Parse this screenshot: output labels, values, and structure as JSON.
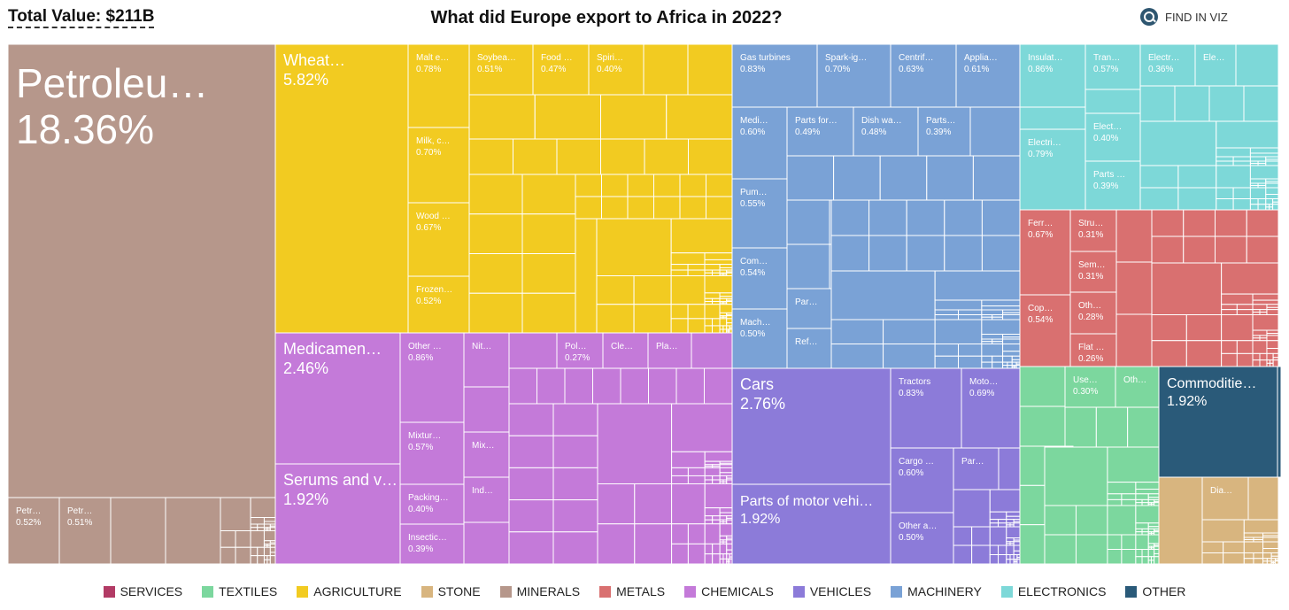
{
  "header": {
    "total": "Total Value: $211B",
    "title": "What did Europe export to Africa in 2022?",
    "find": "FIND IN VIZ"
  },
  "colors": {
    "SERVICES": "#b23b65",
    "TEXTILES": "#7cd79e",
    "AGRICULTURE": "#f2cb21",
    "STONE": "#d8b57f",
    "MINERALS": "#b6978b",
    "METALS": "#d97070",
    "CHEMICALS": "#c47ad9",
    "VEHICLES": "#8c7bd9",
    "MACHINERY": "#7aa2d6",
    "ELECTRONICS": "#7dd8d8",
    "OTHER": "#2a5a79"
  },
  "legend": [
    "SERVICES",
    "TEXTILES",
    "AGRICULTURE",
    "STONE",
    "MINERALS",
    "METALS",
    "CHEMICALS",
    "VEHICLES",
    "MACHINERY",
    "ELECTRONICS",
    "OTHER"
  ],
  "chart_data": {
    "type": "treemap",
    "title": "What did Europe export to Africa in 2022?",
    "total": "$211B",
    "items": [
      {
        "label": "Petroleu…",
        "value": "18.36%",
        "sector": "MINERALS"
      },
      {
        "label": "Petr…",
        "value": "0.52%",
        "sector": "MINERALS"
      },
      {
        "label": "Petr…",
        "value": "0.51%",
        "sector": "MINERALS"
      },
      {
        "label": "Wheat…",
        "value": "5.82%",
        "sector": "AGRICULTURE"
      },
      {
        "label": "Malt e…",
        "value": "0.78%",
        "sector": "AGRICULTURE"
      },
      {
        "label": "Soybea…",
        "value": "0.51%",
        "sector": "AGRICULTURE"
      },
      {
        "label": "Food …",
        "value": "0.47%",
        "sector": "AGRICULTURE"
      },
      {
        "label": "Spiri…",
        "value": "0.40%",
        "sector": "AGRICULTURE"
      },
      {
        "label": "Milk, c…",
        "value": "0.70%",
        "sector": "AGRICULTURE"
      },
      {
        "label": "Wood …",
        "value": "0.67%",
        "sector": "AGRICULTURE"
      },
      {
        "label": "Frozen…",
        "value": "0.52%",
        "sector": "AGRICULTURE"
      },
      {
        "label": "Medicamen…",
        "value": "2.46%",
        "sector": "CHEMICALS"
      },
      {
        "label": "Serums and v…",
        "value": "1.92%",
        "sector": "CHEMICALS"
      },
      {
        "label": "Other …",
        "value": "0.86%",
        "sector": "CHEMICALS"
      },
      {
        "label": "Mixtur…",
        "value": "0.57%",
        "sector": "CHEMICALS"
      },
      {
        "label": "Packing…",
        "value": "0.40%",
        "sector": "CHEMICALS"
      },
      {
        "label": "Insectic…",
        "value": "0.39%",
        "sector": "CHEMICALS"
      },
      {
        "label": "Nit…",
        "value": "",
        "sector": "CHEMICALS"
      },
      {
        "label": "Mix…",
        "value": "",
        "sector": "CHEMICALS"
      },
      {
        "label": "Ind…",
        "value": "",
        "sector": "CHEMICALS"
      },
      {
        "label": "Pol…",
        "value": "0.27%",
        "sector": "CHEMICALS"
      },
      {
        "label": "Cle…",
        "value": "",
        "sector": "CHEMICALS"
      },
      {
        "label": "Pla…",
        "value": "",
        "sector": "CHEMICALS"
      },
      {
        "label": "Gas turbines",
        "value": "0.83%",
        "sector": "MACHINERY"
      },
      {
        "label": "Spark-ig…",
        "value": "0.70%",
        "sector": "MACHINERY"
      },
      {
        "label": "Centrif…",
        "value": "0.63%",
        "sector": "MACHINERY"
      },
      {
        "label": "Applia…",
        "value": "0.61%",
        "sector": "MACHINERY"
      },
      {
        "label": "Medi…",
        "value": "0.60%",
        "sector": "MACHINERY"
      },
      {
        "label": "Parts for…",
        "value": "0.49%",
        "sector": "MACHINERY"
      },
      {
        "label": "Dish wa…",
        "value": "0.48%",
        "sector": "MACHINERY"
      },
      {
        "label": "Parts…",
        "value": "0.39%",
        "sector": "MACHINERY"
      },
      {
        "label": "Pum…",
        "value": "0.55%",
        "sector": "MACHINERY"
      },
      {
        "label": "Com…",
        "value": "0.54%",
        "sector": "MACHINERY"
      },
      {
        "label": "Mach…",
        "value": "0.50%",
        "sector": "MACHINERY"
      },
      {
        "label": "Par…",
        "value": "",
        "sector": "MACHINERY"
      },
      {
        "label": "Ref…",
        "value": "",
        "sector": "MACHINERY"
      },
      {
        "label": "Cars",
        "value": "2.76%",
        "sector": "VEHICLES"
      },
      {
        "label": "Parts of motor vehi…",
        "value": "1.92%",
        "sector": "VEHICLES"
      },
      {
        "label": "Tractors",
        "value": "0.83%",
        "sector": "VEHICLES"
      },
      {
        "label": "Moto…",
        "value": "0.69%",
        "sector": "VEHICLES"
      },
      {
        "label": "Cargo …",
        "value": "0.60%",
        "sector": "VEHICLES"
      },
      {
        "label": "Par…",
        "value": "",
        "sector": "VEHICLES"
      },
      {
        "label": "Other a…",
        "value": "0.50%",
        "sector": "VEHICLES"
      },
      {
        "label": "Insulat…",
        "value": "0.86%",
        "sector": "ELECTRONICS"
      },
      {
        "label": "Tran…",
        "value": "0.57%",
        "sector": "ELECTRONICS"
      },
      {
        "label": "Electr…",
        "value": "0.36%",
        "sector": "ELECTRONICS"
      },
      {
        "label": "Ele…",
        "value": "",
        "sector": "ELECTRONICS"
      },
      {
        "label": "Electri…",
        "value": "0.79%",
        "sector": "ELECTRONICS"
      },
      {
        "label": "Elect…",
        "value": "0.40%",
        "sector": "ELECTRONICS"
      },
      {
        "label": "Parts …",
        "value": "0.39%",
        "sector": "ELECTRONICS"
      },
      {
        "label": "Ferr…",
        "value": "0.67%",
        "sector": "METALS"
      },
      {
        "label": "Stru…",
        "value": "0.31%",
        "sector": "METALS"
      },
      {
        "label": "Sem…",
        "value": "0.31%",
        "sector": "METALS"
      },
      {
        "label": "Cop…",
        "value": "0.54%",
        "sector": "METALS"
      },
      {
        "label": "Oth…",
        "value": "0.28%",
        "sector": "METALS"
      },
      {
        "label": "Flat …",
        "value": "0.26%",
        "sector": "METALS"
      },
      {
        "label": "Use…",
        "value": "0.30%",
        "sector": "TEXTILES"
      },
      {
        "label": "Oth…",
        "value": "",
        "sector": "TEXTILES"
      },
      {
        "label": "Commoditie…",
        "value": "1.92%",
        "sector": "OTHER"
      },
      {
        "label": "Dia…",
        "value": "",
        "sector": "STONE"
      }
    ]
  }
}
